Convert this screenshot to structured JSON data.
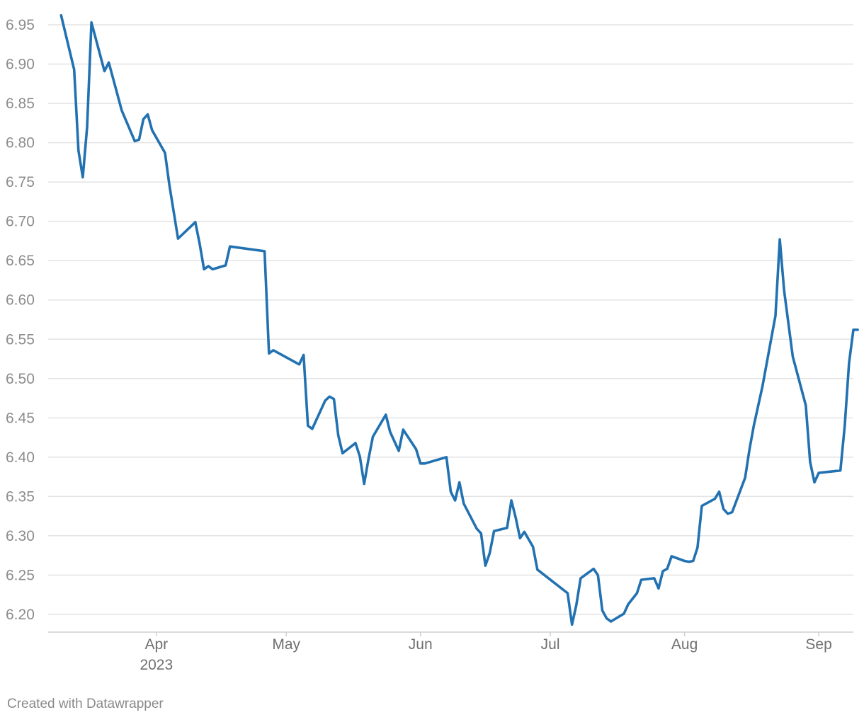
{
  "chart_data": {
    "type": "line",
    "title": "",
    "xlabel": "",
    "ylabel": "",
    "x_range": [
      "2023-03-07",
      "2023-09-09"
    ],
    "ylim": [
      6.18,
      6.97
    ],
    "yticks": [
      6.2,
      6.25,
      6.3,
      6.35,
      6.4,
      6.45,
      6.5,
      6.55,
      6.6,
      6.65,
      6.7,
      6.75,
      6.8,
      6.85,
      6.9,
      6.95
    ],
    "ytick_labels": [
      "6.20",
      "6.25",
      "6.30",
      "6.35",
      "6.40",
      "6.45",
      "6.50",
      "6.55",
      "6.60",
      "6.65",
      "6.70",
      "6.75",
      "6.80",
      "6.85",
      "6.90",
      "6.95"
    ],
    "xticks": [
      {
        "date": "2023-04-01",
        "label": "Apr",
        "sublabel": "2023"
      },
      {
        "date": "2023-05-01",
        "label": "May",
        "sublabel": ""
      },
      {
        "date": "2023-06-01",
        "label": "Jun",
        "sublabel": ""
      },
      {
        "date": "2023-07-01",
        "label": "Jul",
        "sublabel": ""
      },
      {
        "date": "2023-08-01",
        "label": "Aug",
        "sublabel": ""
      },
      {
        "date": "2023-09-01",
        "label": "Sep",
        "sublabel": ""
      }
    ],
    "grid": true,
    "line_color": "#2271b1",
    "series": [
      {
        "points": [
          [
            "2023-03-10",
            6.962
          ],
          [
            "2023-03-13",
            6.893
          ],
          [
            "2023-03-14",
            6.79
          ],
          [
            "2023-03-15",
            6.756
          ],
          [
            "2023-03-16",
            6.82
          ],
          [
            "2023-03-17",
            6.953
          ],
          [
            "2023-03-20",
            6.891
          ],
          [
            "2023-03-21",
            6.902
          ],
          [
            "2023-03-24",
            6.841
          ],
          [
            "2023-03-27",
            6.802
          ],
          [
            "2023-03-28",
            6.804
          ],
          [
            "2023-03-29",
            6.83
          ],
          [
            "2023-03-30",
            6.836
          ],
          [
            "2023-03-31",
            6.816
          ],
          [
            "2023-04-03",
            6.787
          ],
          [
            "2023-04-04",
            6.746
          ],
          [
            "2023-04-06",
            6.678
          ],
          [
            "2023-04-10",
            6.699
          ],
          [
            "2023-04-11",
            6.671
          ],
          [
            "2023-04-12",
            6.639
          ],
          [
            "2023-04-13",
            6.643
          ],
          [
            "2023-04-14",
            6.639
          ],
          [
            "2023-04-17",
            6.644
          ],
          [
            "2023-04-18",
            6.668
          ],
          [
            "2023-04-26",
            6.662
          ],
          [
            "2023-04-27",
            6.532
          ],
          [
            "2023-04-28",
            6.536
          ],
          [
            "2023-05-04",
            6.518
          ],
          [
            "2023-05-05",
            6.53
          ],
          [
            "2023-05-06",
            6.44
          ],
          [
            "2023-05-07",
            6.436
          ],
          [
            "2023-05-10",
            6.472
          ],
          [
            "2023-05-11",
            6.477
          ],
          [
            "2023-05-12",
            6.474
          ],
          [
            "2023-05-13",
            6.428
          ],
          [
            "2023-05-14",
            6.405
          ],
          [
            "2023-05-17",
            6.418
          ],
          [
            "2023-05-18",
            6.401
          ],
          [
            "2023-05-19",
            6.366
          ],
          [
            "2023-05-20",
            6.398
          ],
          [
            "2023-05-21",
            6.426
          ],
          [
            "2023-05-24",
            6.454
          ],
          [
            "2023-05-25",
            6.432
          ],
          [
            "2023-05-27",
            6.408
          ],
          [
            "2023-05-28",
            6.435
          ],
          [
            "2023-05-31",
            6.41
          ],
          [
            "2023-06-01",
            6.392
          ],
          [
            "2023-06-02",
            6.392
          ],
          [
            "2023-06-07",
            6.4
          ],
          [
            "2023-06-08",
            6.356
          ],
          [
            "2023-06-09",
            6.345
          ],
          [
            "2023-06-10",
            6.368
          ],
          [
            "2023-06-11",
            6.341
          ],
          [
            "2023-06-14",
            6.309
          ],
          [
            "2023-06-15",
            6.303
          ],
          [
            "2023-06-16",
            6.262
          ],
          [
            "2023-06-17",
            6.278
          ],
          [
            "2023-06-18",
            6.306
          ],
          [
            "2023-06-21",
            6.31
          ],
          [
            "2023-06-22",
            6.345
          ],
          [
            "2023-06-23",
            6.323
          ],
          [
            "2023-06-24",
            6.297
          ],
          [
            "2023-06-25",
            6.305
          ],
          [
            "2023-06-27",
            6.286
          ],
          [
            "2023-06-28",
            6.257
          ],
          [
            "2023-07-05",
            6.227
          ],
          [
            "2023-07-06",
            6.187
          ],
          [
            "2023-07-07",
            6.212
          ],
          [
            "2023-07-08",
            6.246
          ],
          [
            "2023-07-11",
            6.258
          ],
          [
            "2023-07-12",
            6.25
          ],
          [
            "2023-07-13",
            6.205
          ],
          [
            "2023-07-14",
            6.195
          ],
          [
            "2023-07-15",
            6.191
          ],
          [
            "2023-07-18",
            6.201
          ],
          [
            "2023-07-19",
            6.213
          ],
          [
            "2023-07-21",
            6.227
          ],
          [
            "2023-07-22",
            6.244
          ],
          [
            "2023-07-25",
            6.246
          ],
          [
            "2023-07-26",
            6.233
          ],
          [
            "2023-07-27",
            6.255
          ],
          [
            "2023-07-28",
            6.258
          ],
          [
            "2023-07-29",
            6.274
          ],
          [
            "2023-08-01",
            6.268
          ],
          [
            "2023-08-02",
            6.267
          ],
          [
            "2023-08-03",
            6.268
          ],
          [
            "2023-08-04",
            6.285
          ],
          [
            "2023-08-05",
            6.338
          ],
          [
            "2023-08-08",
            6.347
          ],
          [
            "2023-08-09",
            6.356
          ],
          [
            "2023-08-10",
            6.334
          ],
          [
            "2023-08-11",
            6.328
          ],
          [
            "2023-08-12",
            6.33
          ],
          [
            "2023-08-15",
            6.374
          ],
          [
            "2023-08-16",
            6.41
          ],
          [
            "2023-08-17",
            6.44
          ],
          [
            "2023-08-19",
            6.49
          ],
          [
            "2023-08-22",
            6.58
          ],
          [
            "2023-08-23",
            6.677
          ],
          [
            "2023-08-24",
            6.612
          ],
          [
            "2023-08-25",
            6.57
          ],
          [
            "2023-08-26",
            6.528
          ],
          [
            "2023-08-29",
            6.466
          ],
          [
            "2023-08-30",
            6.394
          ],
          [
            "2023-08-31",
            6.368
          ],
          [
            "2023-09-01",
            6.38
          ],
          [
            "2023-09-06",
            6.383
          ],
          [
            "2023-09-07",
            6.44
          ],
          [
            "2023-09-08",
            6.52
          ],
          [
            "2023-09-09",
            6.562
          ],
          [
            "2023-09-10",
            6.562
          ]
        ]
      }
    ]
  },
  "credit": "Created with Datawrapper"
}
